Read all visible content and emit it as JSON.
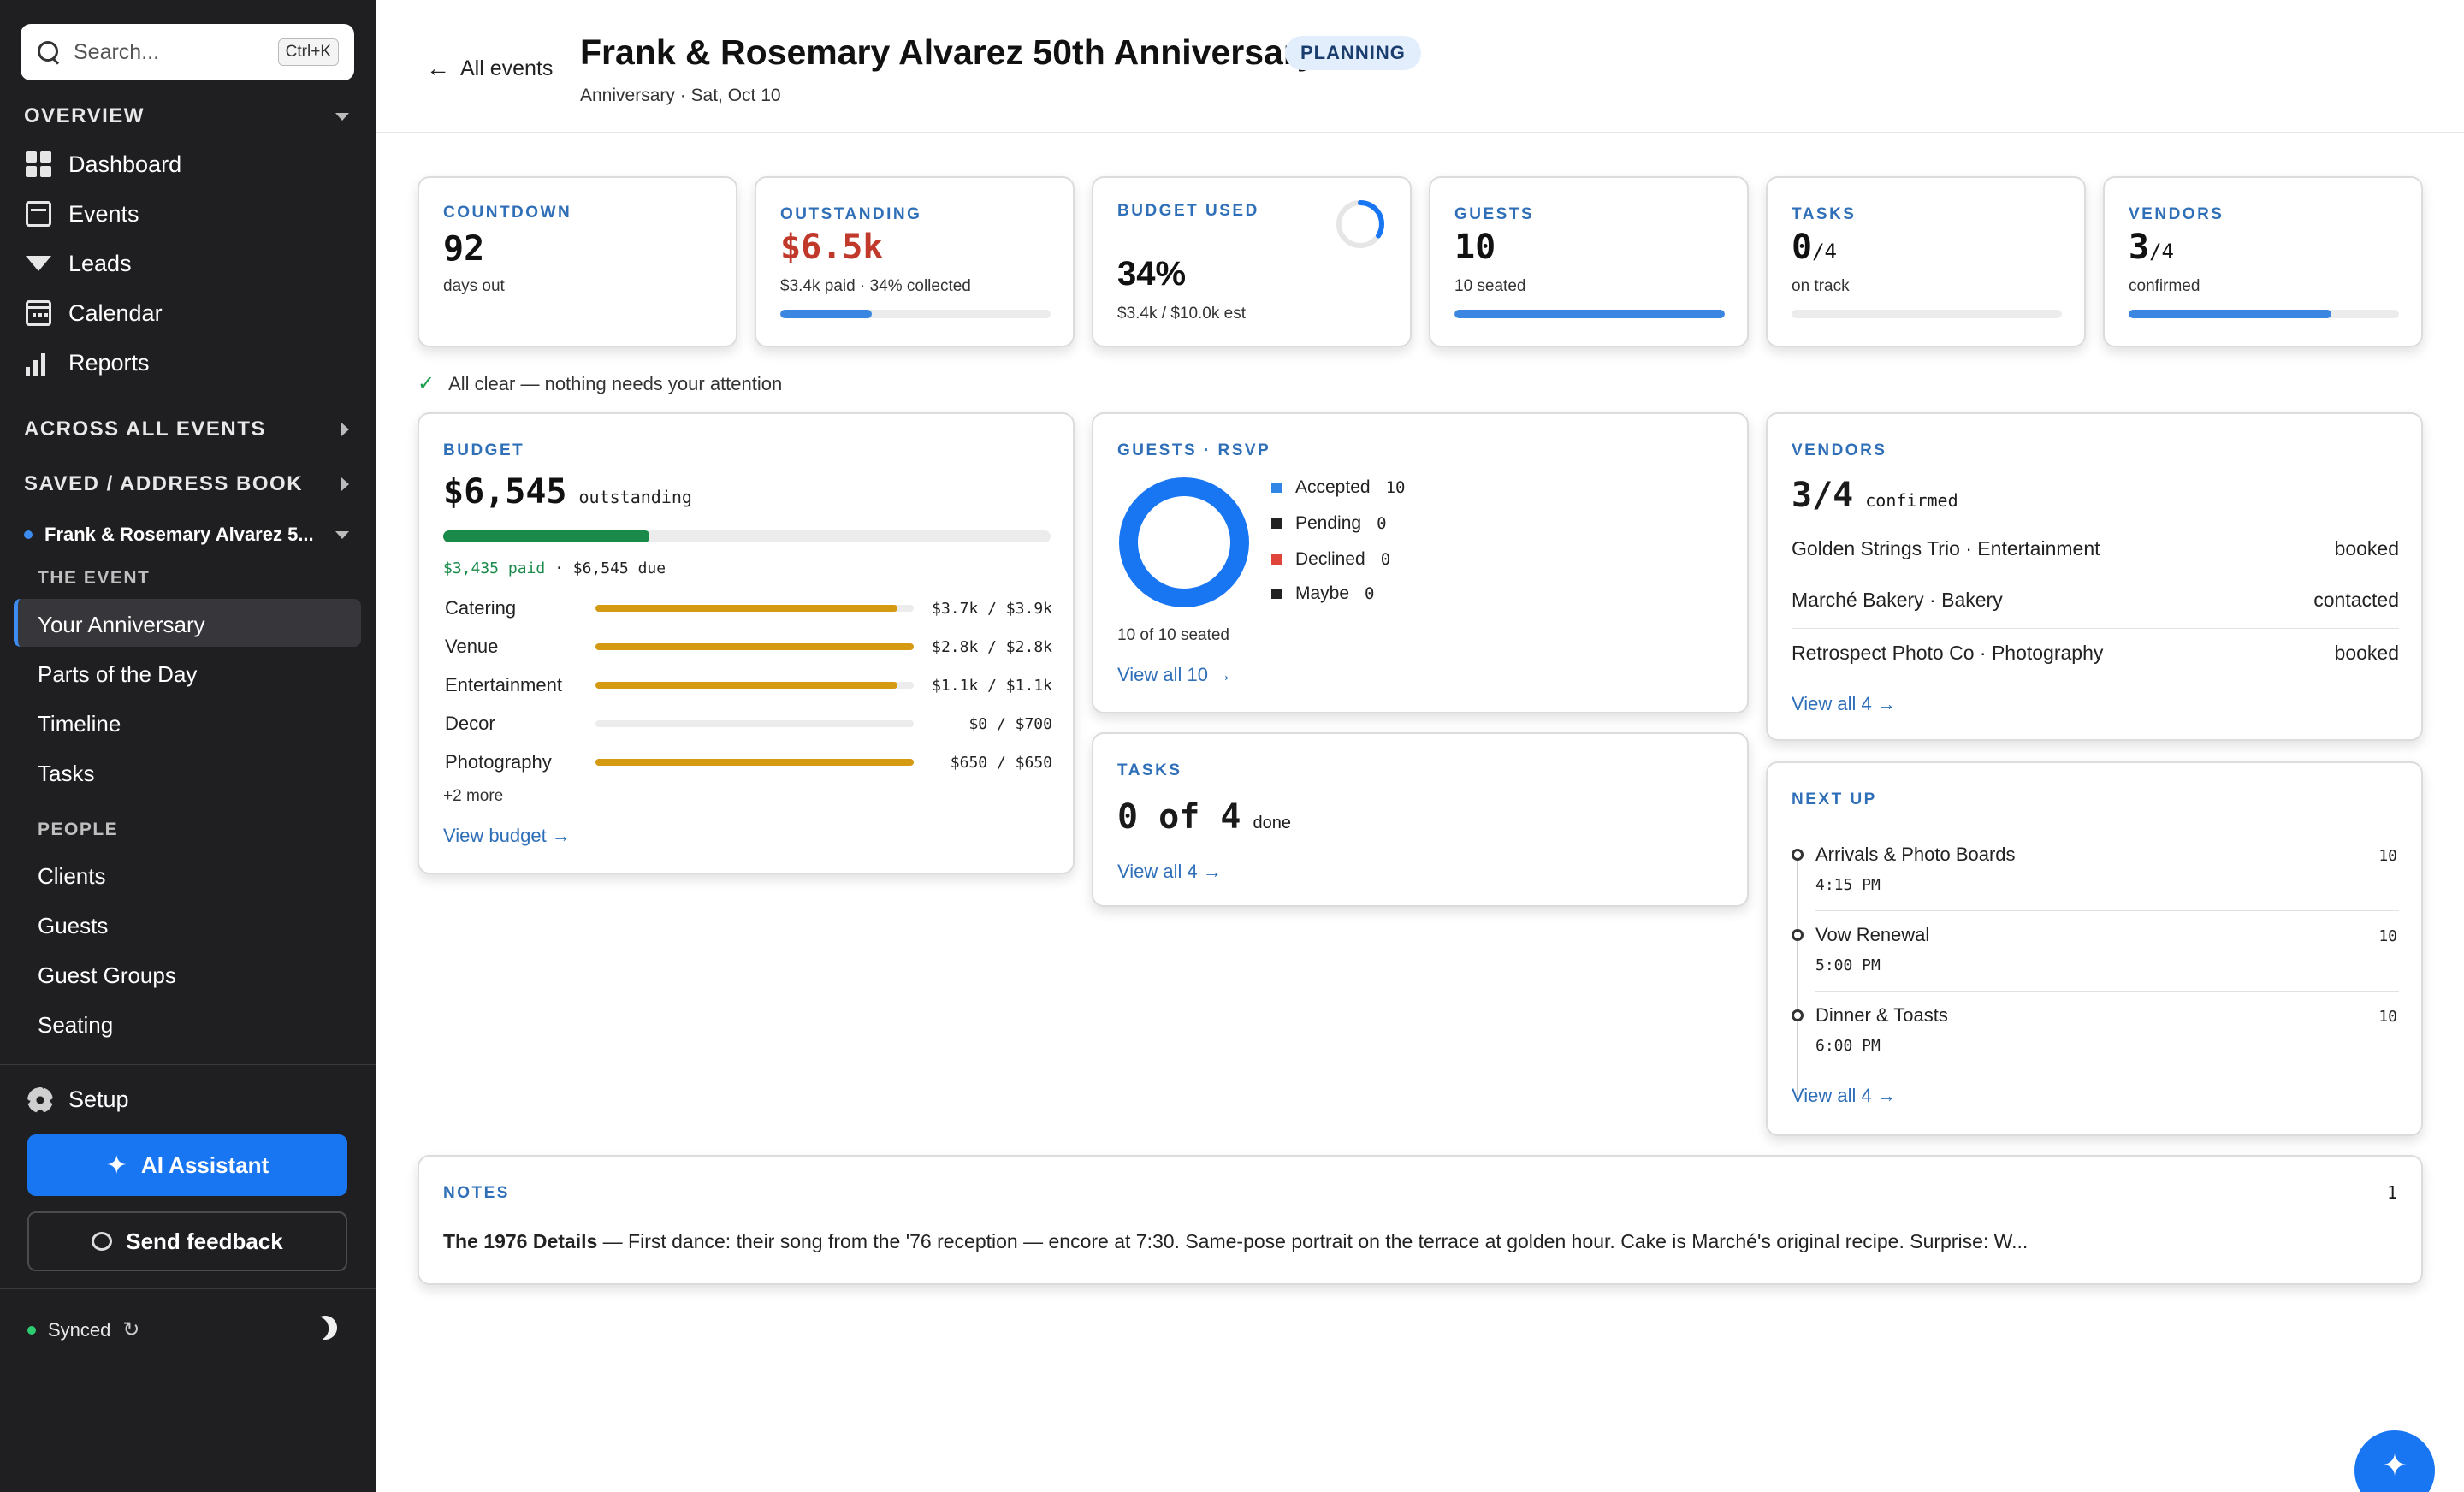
{
  "sidebar": {
    "search_placeholder": "Search...",
    "search_shortcut": "Ctrl+K",
    "overview_heading": "OVERVIEW",
    "overview_items": [
      "Dashboard",
      "Events",
      "Leads",
      "Calendar",
      "Reports"
    ],
    "across_heading": "ACROSS ALL EVENTS",
    "saved_heading": "SAVED / ADDRESS BOOK",
    "current_event": "Frank & Rosemary Alvarez 5...",
    "the_event_heading": "THE EVENT",
    "event_items": [
      "Your Anniversary",
      "Parts of the Day",
      "Timeline",
      "Tasks"
    ],
    "people_heading": "PEOPLE",
    "people_items": [
      "Clients",
      "Guests",
      "Guest Groups",
      "Seating"
    ],
    "setup_label": "Setup",
    "ai_label": "AI Assistant",
    "feedback_label": "Send feedback",
    "sync_status": "Synced"
  },
  "header": {
    "back_label": "All events",
    "title": "Frank & Rosemary Alvarez 50th Anniversary",
    "status_badge": "PLANNING",
    "subtitle": "Anniversary · Sat, Oct 10"
  },
  "stats": {
    "countdown": {
      "label": "COUNTDOWN",
      "value": "92",
      "caption": "days out"
    },
    "outstanding": {
      "label": "OUTSTANDING",
      "value": "$6.5k",
      "caption": "$3.4k paid · 34% collected",
      "progress": 0.34
    },
    "budget_used": {
      "label": "BUDGET USED",
      "value": "34%",
      "caption": "$3.4k / $10.0k est",
      "progress": 0.34
    },
    "guests": {
      "label": "GUESTS",
      "value": "10",
      "caption": "10 seated",
      "progress": 1.0
    },
    "tasks": {
      "label": "TASKS",
      "value": "0",
      "total": "/4",
      "caption": "on track",
      "progress": 0.0
    },
    "vendors": {
      "label": "VENDORS",
      "value": "3",
      "total": "/4",
      "caption": "confirmed",
      "progress": 0.75
    }
  },
  "attention": "All clear — nothing needs your attention",
  "budget": {
    "label": "BUDGET",
    "amount": "$6,545",
    "amount_suffix": "outstanding",
    "paid_text": "$3,435 paid",
    "due_text": "· $6,545 due",
    "paid_fraction": 0.34,
    "lines": [
      {
        "name": "Catering",
        "amount": "$3.7k / $3.9k",
        "fraction": 0.95
      },
      {
        "name": "Venue",
        "amount": "$2.8k / $2.8k",
        "fraction": 1.0
      },
      {
        "name": "Entertainment",
        "amount": "$1.1k / $1.1k",
        "fraction": 0.95
      },
      {
        "name": "Decor",
        "amount": "$0 / $700",
        "fraction": 0.0
      },
      {
        "name": "Photography",
        "amount": "$650 / $650",
        "fraction": 1.0
      }
    ],
    "more": "+2 more",
    "link": "View budget →"
  },
  "rsvp": {
    "label": "GUESTS · RSVP",
    "legend": [
      {
        "name": "Accepted",
        "value": "10",
        "color": "#2f86e6"
      },
      {
        "name": "Pending",
        "value": "0",
        "color": "#222222"
      },
      {
        "name": "Declined",
        "value": "0",
        "color": "#e0453a"
      },
      {
        "name": "Maybe",
        "value": "0",
        "color": "#222222"
      }
    ],
    "seated": "10 of 10 seated",
    "link": "View all 10 →"
  },
  "tasks_card": {
    "label": "TASKS",
    "value": "0 of 4",
    "suffix": "done",
    "link": "View all 4 →"
  },
  "vendors_card": {
    "label": "VENDORS",
    "value": "3/4",
    "suffix": "confirmed",
    "rows": [
      {
        "name": "Golden Strings Trio · Entertainment",
        "status": "booked"
      },
      {
        "name": "Marché Bakery · Bakery",
        "status": "contacted"
      },
      {
        "name": "Retrospect Photo Co · Photography",
        "status": "booked"
      }
    ],
    "link": "View all 4 →"
  },
  "next_up": {
    "label": "NEXT UP",
    "items": [
      {
        "title": "Arrivals & Photo Boards",
        "time": "4:15 PM",
        "count": "10"
      },
      {
        "title": "Vow Renewal",
        "time": "5:00 PM",
        "count": "10"
      },
      {
        "title": "Dinner & Toasts",
        "time": "6:00 PM",
        "count": "10"
      }
    ],
    "link": "View all 4 →"
  },
  "notes": {
    "label": "NOTES",
    "count": "1",
    "title": "The 1976 Details",
    "body": " — First dance: their song from the '76 reception — encore at 7:30. Same-pose portrait on the terrace at golden hour. Cake is Marché's original recipe. Surprise: W..."
  },
  "colors": {
    "accent": "#1976f2",
    "outstanding_red": "#c0392b",
    "paid_green": "#1a8a4a",
    "budget_bar": "#d49a12"
  }
}
